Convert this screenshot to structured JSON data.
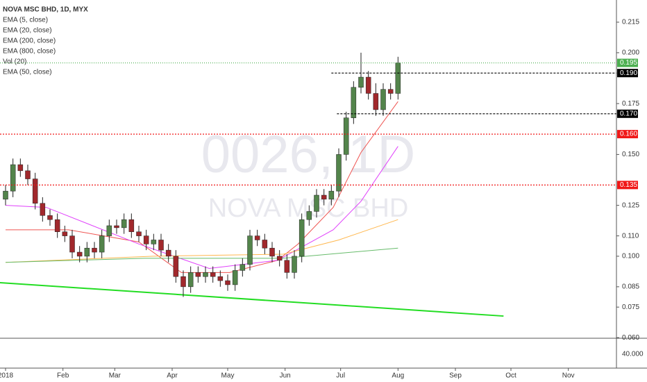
{
  "chart_data": {
    "type": "candlestick",
    "title": "NOVA MSC BHD, 1D, MYX",
    "legend": [
      "EMA (5, close)",
      "EMA (20, close)",
      "EMA (200, close)",
      "EMA (800, close)",
      "Vol (20)",
      "EMA (50, close)"
    ],
    "watermark": [
      "0026, 1D",
      "NOVA MSC BHD"
    ],
    "up_color": "#53844b",
    "down_color": "#a1282c",
    "x": [
      0,
      4,
      8,
      12,
      16,
      20,
      24,
      28,
      32,
      36,
      40,
      44,
      48,
      52,
      56,
      60,
      64,
      68,
      72,
      76,
      80,
      84,
      88,
      92,
      96,
      100,
      104,
      108,
      112,
      116,
      120,
      124,
      128,
      132,
      136,
      140,
      144,
      148,
      152,
      156,
      160,
      164,
      168,
      172,
      176,
      180,
      184,
      188,
      192,
      196,
      200,
      204,
      208,
      212
    ],
    "open": [
      0.128,
      0.132,
      0.145,
      0.142,
      0.138,
      0.126,
      0.12,
      0.118,
      0.112,
      0.11,
      0.102,
      0.1,
      0.104,
      0.102,
      0.11,
      0.115,
      0.114,
      0.118,
      0.112,
      0.11,
      0.106,
      0.108,
      0.103,
      0.1,
      0.09,
      0.085,
      0.092,
      0.09,
      0.092,
      0.09,
      0.088,
      0.086,
      0.093,
      0.096,
      0.11,
      0.108,
      0.104,
      0.1,
      0.098,
      0.092,
      0.1,
      0.118,
      0.122,
      0.13,
      0.128,
      0.132,
      0.15,
      0.168,
      0.183,
      0.188,
      0.18,
      0.172,
      0.182,
      0.18
    ],
    "high": [
      0.135,
      0.148,
      0.148,
      0.145,
      0.141,
      0.129,
      0.123,
      0.121,
      0.115,
      0.113,
      0.105,
      0.107,
      0.107,
      0.113,
      0.118,
      0.118,
      0.121,
      0.121,
      0.115,
      0.113,
      0.111,
      0.111,
      0.106,
      0.103,
      0.093,
      0.095,
      0.095,
      0.095,
      0.095,
      0.093,
      0.091,
      0.096,
      0.099,
      0.113,
      0.113,
      0.111,
      0.107,
      0.103,
      0.101,
      0.103,
      0.121,
      0.125,
      0.133,
      0.133,
      0.135,
      0.153,
      0.171,
      0.186,
      0.2,
      0.191,
      0.185,
      0.185,
      0.185,
      0.198
    ],
    "low": [
      0.125,
      0.129,
      0.139,
      0.135,
      0.123,
      0.117,
      0.115,
      0.109,
      0.107,
      0.099,
      0.097,
      0.097,
      0.099,
      0.099,
      0.107,
      0.111,
      0.111,
      0.109,
      0.107,
      0.103,
      0.103,
      0.1,
      0.097,
      0.087,
      0.08,
      0.082,
      0.087,
      0.087,
      0.087,
      0.085,
      0.083,
      0.083,
      0.09,
      0.093,
      0.105,
      0.101,
      0.097,
      0.095,
      0.089,
      0.089,
      0.097,
      0.115,
      0.119,
      0.125,
      0.125,
      0.129,
      0.147,
      0.165,
      0.18,
      0.177,
      0.169,
      0.169,
      0.177,
      0.177
    ],
    "close": [
      0.132,
      0.145,
      0.142,
      0.138,
      0.126,
      0.12,
      0.118,
      0.112,
      0.11,
      0.102,
      0.1,
      0.104,
      0.102,
      0.11,
      0.115,
      0.114,
      0.118,
      0.112,
      0.11,
      0.106,
      0.108,
      0.103,
      0.1,
      0.09,
      0.085,
      0.092,
      0.09,
      0.092,
      0.09,
      0.088,
      0.086,
      0.093,
      0.096,
      0.11,
      0.108,
      0.104,
      0.1,
      0.098,
      0.092,
      0.1,
      0.118,
      0.122,
      0.13,
      0.128,
      0.132,
      0.15,
      0.168,
      0.183,
      0.188,
      0.18,
      0.172,
      0.182,
      0.18,
      0.195
    ],
    "lines": [
      {
        "color": "#ef5350",
        "x": [
          0,
          34,
          72,
          95,
          121,
          147,
          158,
          177,
          192,
          212
        ],
        "values": [
          0.113,
          0.113,
          0.107,
          0.092,
          0.092,
          0.098,
          0.106,
          0.124,
          0.151,
          0.176
        ]
      },
      {
        "color": "#e040fb",
        "x": [
          0,
          22,
          72,
          110,
          147,
          177,
          192,
          212
        ],
        "values": [
          0.125,
          0.124,
          0.106,
          0.094,
          0.098,
          0.113,
          0.127,
          0.154
        ]
      },
      {
        "color": "#ffb74d",
        "x": [
          0,
          80,
          150,
          180,
          212
        ],
        "values": [
          0.097,
          0.1,
          0.101,
          0.108,
          0.118
        ]
      },
      {
        "color": "#66bb6a",
        "x": [
          0,
          75,
          150,
          212
        ],
        "values": [
          0.097,
          0.099,
          0.099,
          0.104
        ]
      }
    ],
    "trendline": {
      "color": "#22dd22",
      "x": [
        -3,
        269
      ],
      "values": [
        0.087,
        0.0706
      ]
    },
    "levels": [
      {
        "value": 0.195,
        "label": "0.195",
        "color": "#4caf50",
        "dash": "1,2"
      },
      {
        "value": 0.19,
        "label": "0.190",
        "color": "#000000",
        "dash": "3,2",
        "from": 176
      },
      {
        "value": 0.17,
        "label": "0.170",
        "color": "#000000",
        "dash": "3,2",
        "from": 179
      },
      {
        "value": 0.16,
        "label": "0.160",
        "color": "#f01818",
        "dash": "2,2"
      },
      {
        "value": 0.135,
        "label": "0.135",
        "color": "#f01818",
        "dash": "2,2"
      }
    ],
    "xlim": [
      -3,
      330
    ],
    "xticks": [
      {
        "value": 0,
        "label": "2018"
      },
      {
        "value": 31,
        "label": "Feb"
      },
      {
        "value": 59,
        "label": "Mar"
      },
      {
        "value": 90,
        "label": "Apr"
      },
      {
        "value": 120,
        "label": "May"
      },
      {
        "value": 151,
        "label": "Jun"
      },
      {
        "value": 181,
        "label": "Jul"
      },
      {
        "value": 212,
        "label": "Aug"
      },
      {
        "value": 243,
        "label": "Sep"
      },
      {
        "value": 273,
        "label": "Oct"
      },
      {
        "value": 304,
        "label": "Nov"
      }
    ],
    "ylim": [
      0.0597,
      0.2259
    ],
    "yticks": [
      {
        "value": 0.06,
        "label": "0.060"
      },
      {
        "value": 0.075,
        "label": "0.075"
      },
      {
        "value": 0.085,
        "label": "0.085"
      },
      {
        "value": 0.1,
        "label": "0.100"
      },
      {
        "value": 0.11,
        "label": "0.110"
      },
      {
        "value": 0.125,
        "label": "0.125"
      },
      {
        "value": 0.15,
        "label": "0.150"
      },
      {
        "value": 0.175,
        "label": "0.175"
      },
      {
        "value": 0.2,
        "label": "0.200"
      },
      {
        "value": 0.215,
        "label": "0.215"
      }
    ],
    "lower_pane_label": "40.000"
  }
}
